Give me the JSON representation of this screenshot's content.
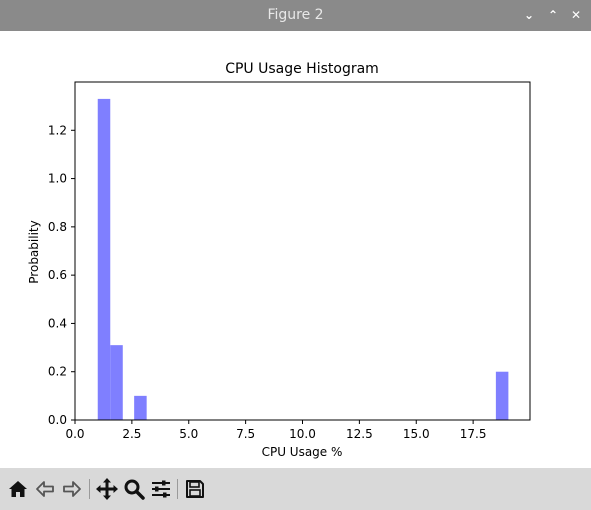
{
  "window": {
    "title": "Figure 2",
    "minimize_glyph": "⌄",
    "maximize_glyph": "⌃",
    "close_glyph": "✕"
  },
  "toolbar": {
    "buttons": [
      {
        "name": "home-icon"
      },
      {
        "name": "back-icon"
      },
      {
        "name": "forward-icon"
      },
      {
        "name": "pan-icon"
      },
      {
        "name": "zoom-icon"
      },
      {
        "name": "configure-subplots-icon"
      },
      {
        "name": "save-icon"
      }
    ]
  },
  "chart_data": {
    "type": "bar",
    "title": "CPU Usage Histogram",
    "xlabel": "CPU Usage %",
    "ylabel": "Probability",
    "xlim": [
      0.0,
      20.0
    ],
    "ylim": [
      0.0,
      1.4
    ],
    "xticks": [
      0.0,
      2.5,
      5.0,
      7.5,
      10.0,
      12.5,
      15.0,
      17.5
    ],
    "xtick_labels": [
      "0.0",
      "2.5",
      "5.0",
      "7.5",
      "10.0",
      "12.5",
      "15.0",
      "17.5"
    ],
    "yticks": [
      0.0,
      0.2,
      0.4,
      0.6,
      0.8,
      1.0,
      1.2
    ],
    "ytick_labels": [
      "0.0",
      "0.2",
      "0.4",
      "0.6",
      "0.8",
      "1.0",
      "1.2"
    ],
    "bar_color": "#7f7fff",
    "bins": [
      {
        "x0": 1.0,
        "x1": 1.55,
        "value": 1.33
      },
      {
        "x0": 1.55,
        "x1": 2.1,
        "value": 0.31
      },
      {
        "x0": 2.6,
        "x1": 3.15,
        "value": 0.1
      },
      {
        "x0": 18.5,
        "x1": 19.05,
        "value": 0.2
      }
    ]
  }
}
